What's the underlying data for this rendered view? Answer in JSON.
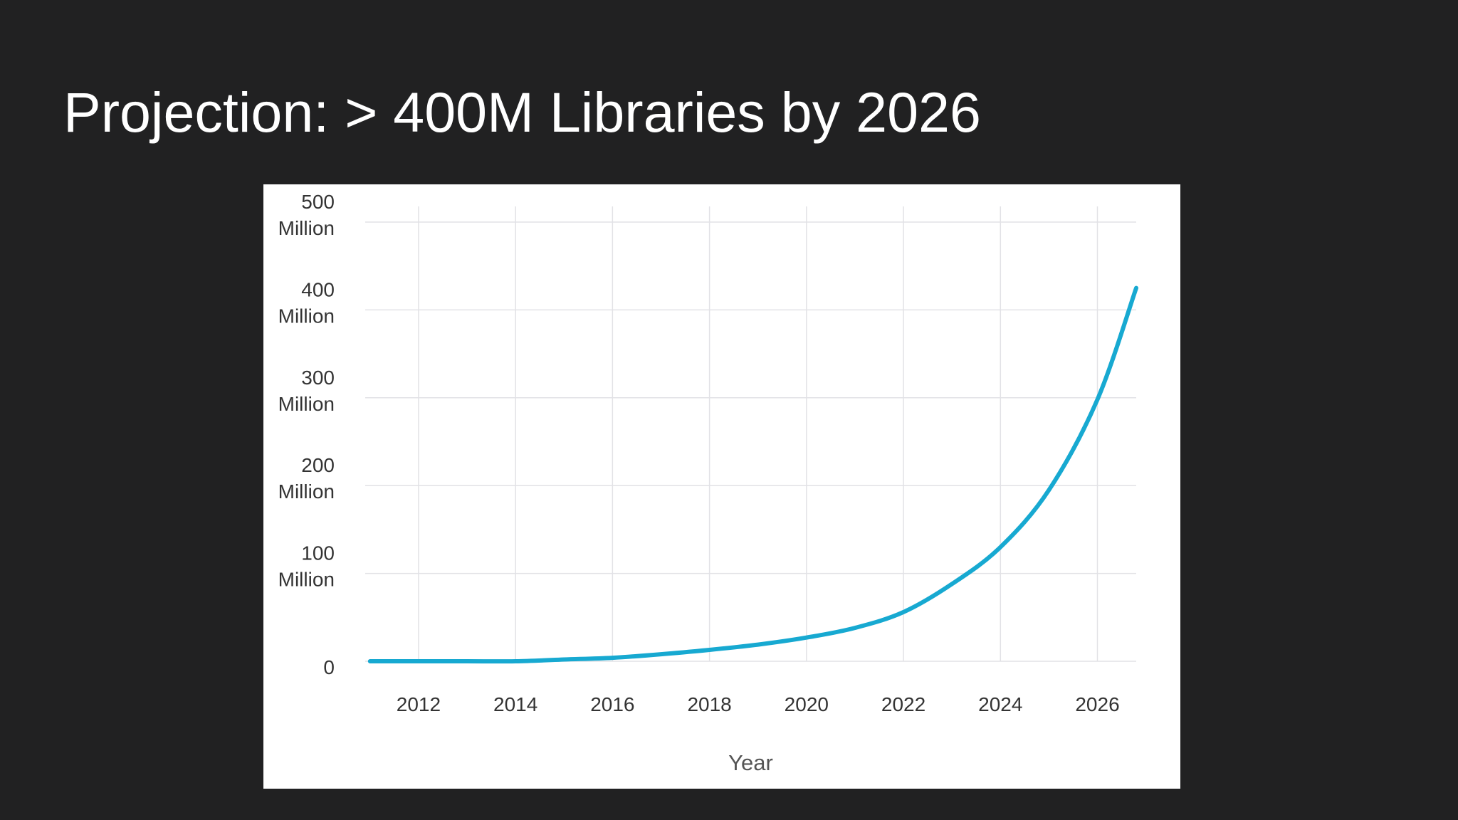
{
  "slide": {
    "title": "Projection: > 400M Libraries by 2026"
  },
  "chart_data": {
    "type": "line",
    "title": "",
    "xlabel": "Year",
    "ylabel": "",
    "xlim": [
      2010.9,
      2026.8
    ],
    "ylim": [
      0,
      500
    ],
    "x_ticks": [
      {
        "value": 2012,
        "label": "2012"
      },
      {
        "value": 2014,
        "label": "2014"
      },
      {
        "value": 2016,
        "label": "2016"
      },
      {
        "value": 2018,
        "label": "2018"
      },
      {
        "value": 2020,
        "label": "2020"
      },
      {
        "value": 2022,
        "label": "2022"
      },
      {
        "value": 2024,
        "label": "2024"
      },
      {
        "value": 2026,
        "label": "2026"
      }
    ],
    "y_ticks": [
      {
        "value": 0,
        "label": "0"
      },
      {
        "value": 100,
        "label": "100",
        "unit": "Million"
      },
      {
        "value": 200,
        "label": "200",
        "unit": "Million"
      },
      {
        "value": 300,
        "label": "300",
        "unit": "Million"
      },
      {
        "value": 400,
        "label": "400",
        "unit": "Million"
      },
      {
        "value": 500,
        "label": "500",
        "unit": "Million"
      }
    ],
    "grid": true,
    "legend": "none",
    "series": [
      {
        "color": "#17a9d1",
        "x": [
          2011,
          2012,
          2013,
          2014,
          2015,
          2016,
          2017,
          2018,
          2019,
          2020,
          2021,
          2022,
          2023,
          2024,
          2025,
          2026,
          2026.8
        ],
        "y": [
          0,
          0,
          0,
          0,
          2,
          4,
          8,
          13,
          19,
          27,
          38,
          56,
          88,
          130,
          195,
          298,
          425
        ]
      }
    ]
  }
}
